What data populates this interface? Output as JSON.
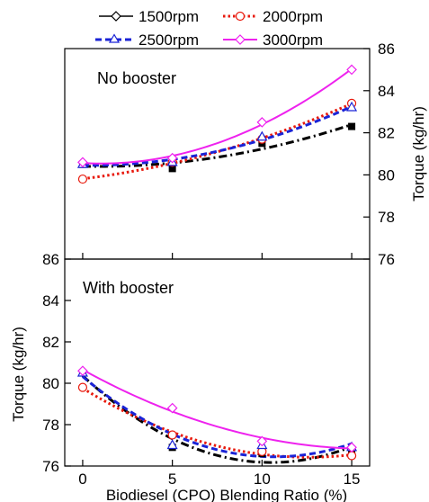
{
  "chart_data": [
    {
      "type": "line",
      "panel": "top",
      "annotation": "No booster",
      "x": [
        0,
        5,
        10,
        15
      ],
      "xlim": [
        -1,
        16
      ],
      "ylim": [
        76,
        86
      ],
      "yticks": [
        76,
        78,
        80,
        82,
        84,
        86
      ],
      "y_axis_side": "right",
      "ylabel": "Torque (kg/hr)",
      "grid": false,
      "series": [
        {
          "name": "1500rpm",
          "values": [
            80.5,
            80.3,
            81.5,
            82.3
          ]
        },
        {
          "name": "2000rpm",
          "values": [
            79.8,
            80.6,
            81.7,
            83.4
          ]
        },
        {
          "name": "2500rpm",
          "values": [
            80.5,
            80.6,
            81.8,
            83.2
          ]
        },
        {
          "name": "3000rpm",
          "values": [
            80.6,
            80.8,
            82.5,
            85.0
          ]
        }
      ]
    },
    {
      "type": "line",
      "panel": "bottom",
      "annotation": "With booster",
      "x": [
        0,
        5,
        10,
        15
      ],
      "xlim": [
        -1,
        16
      ],
      "ylim": [
        76,
        86
      ],
      "yticks": [
        76,
        78,
        80,
        82,
        84,
        86
      ],
      "y_axis_side": "left",
      "xticks": [
        0,
        5,
        10,
        15
      ],
      "xlabel": "Biodiesel (CPO) Blending Ratio (%)",
      "ylabel": "Torque (kg/hr)",
      "grid": false,
      "series": [
        {
          "name": "1500rpm",
          "values": [
            80.5,
            76.9,
            76.6,
            76.8
          ]
        },
        {
          "name": "2000rpm",
          "values": [
            79.8,
            77.5,
            76.7,
            76.5
          ]
        },
        {
          "name": "2500rpm",
          "values": [
            80.5,
            77.0,
            77.0,
            76.9
          ]
        },
        {
          "name": "3000rpm",
          "values": [
            80.6,
            78.8,
            77.2,
            76.9
          ]
        }
      ]
    }
  ],
  "legend": {
    "placement": "top",
    "entries": [
      {
        "label": "1500rpm",
        "color": "#000000",
        "marker": "diamond-open",
        "line": "solid"
      },
      {
        "label": "2000rpm",
        "color": "#e8190c",
        "marker": "circle-open",
        "line": "dotted"
      },
      {
        "label": "2500rpm",
        "color": "#1a23d6",
        "marker": "triangle-open",
        "line": "dashed"
      },
      {
        "label": "3000rpm",
        "color": "#ee22ee",
        "marker": "diamond-open",
        "line": "solid"
      }
    ]
  },
  "fitted_line_style": {
    "1500rpm": "dash-dot",
    "2000rpm": "dotted",
    "2500rpm": "dashed",
    "3000rpm": "solid"
  }
}
